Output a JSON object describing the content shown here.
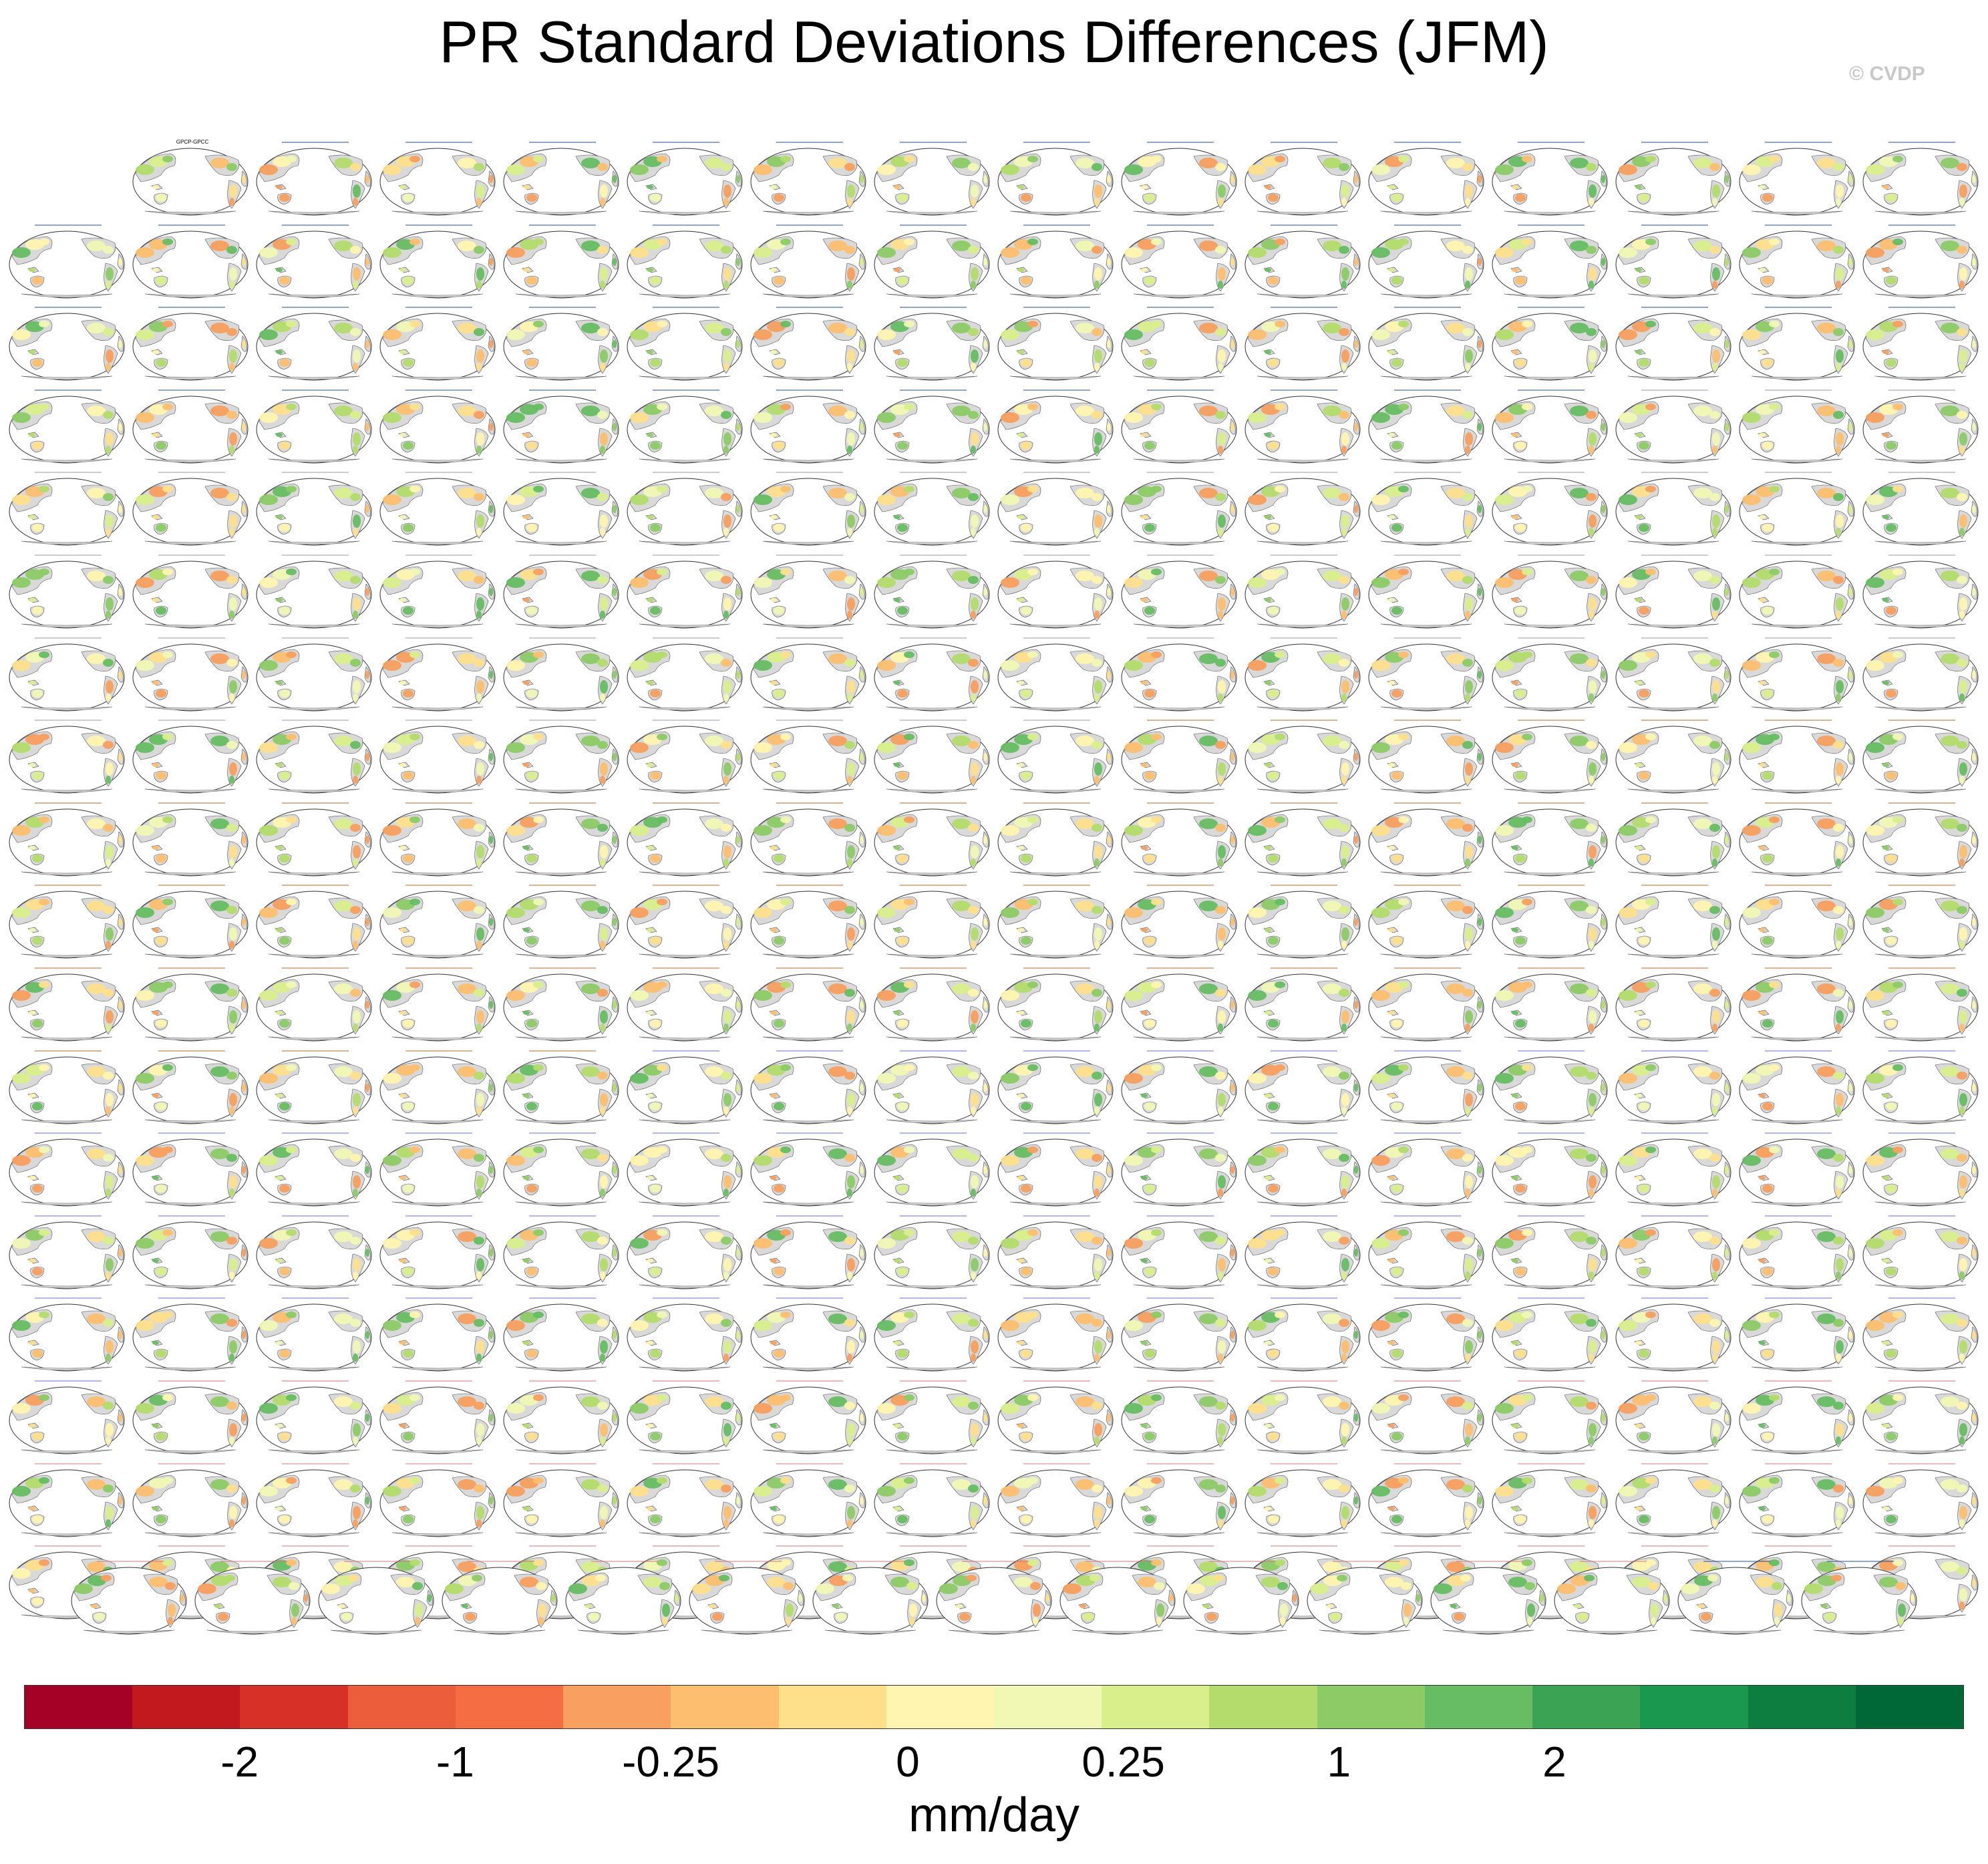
{
  "title": "PR Standard Deviations Differences (JFM)",
  "watermark": "© CVDP",
  "map_panels": {
    "count": 317,
    "first_label": "GPCP-GPCC",
    "projection": "global ellipse, Pacific-centred",
    "land_color": "#d9d9d9",
    "ocean_color": "#ffffff",
    "grid": true
  },
  "colorbar": {
    "units": "mm/day",
    "colors": [
      "#a50026",
      "#c2191f",
      "#d73027",
      "#ec5d3b",
      "#f46d43",
      "#f99f5f",
      "#fdbf6f",
      "#fee08b",
      "#fff5b0",
      "#f1f8b4",
      "#d9ef8b",
      "#b3dc6c",
      "#8ccb66",
      "#66bd63",
      "#3ba454",
      "#1a9850",
      "#0e7d40",
      "#006837"
    ],
    "tick_labels": [
      "-2",
      "-1",
      "-0.25",
      "0",
      "0.25",
      "1",
      "2"
    ]
  }
}
